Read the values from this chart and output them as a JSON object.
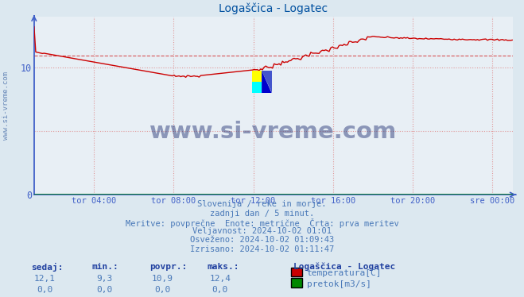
{
  "title": "Logaščica - Logatec",
  "background_color": "#dce8f0",
  "plot_background": "#e8eff5",
  "grid_color": "#e8a0a0",
  "title_color": "#0050a0",
  "temp_color": "#cc0000",
  "flow_color": "#008800",
  "avg_line_color": "#cc0000",
  "axis_color": "#4060c8",
  "tick_color": "#4060c8",
  "watermark_text": "www.si-vreme.com",
  "watermark_color": "#1a2a6e",
  "watermark_alpha": 0.45,
  "left_label_text": "www.si-vreme.com",
  "left_label_color": "#6888b8",
  "info_lines": [
    "Slovenija / reke in morje.",
    "zadnji dan / 5 minut.",
    "Meritve: povprečne  Enote: metrične  Črta: prva meritev",
    "Veljavnost: 2024-10-02 01:01",
    "Osveženo: 2024-10-02 01:09:43",
    "Izrisano: 2024-10-02 01:11:47"
  ],
  "info_color": "#4878b8",
  "table_headers": [
    "sedaj:",
    "min.:",
    "povpr.:",
    "maks.:"
  ],
  "table_header_color": "#2040a0",
  "table_value_color": "#4878b8",
  "legend_station": "Logaščica - Logatec",
  "legend_entries": [
    {
      "label": "temperatura[C]",
      "color": "#cc0000"
    },
    {
      "label": "pretok[m3/s]",
      "color": "#008800"
    }
  ],
  "table_data": [
    [
      "12,1",
      "9,3",
      "10,9",
      "12,4"
    ],
    [
      "0,0",
      "0,0",
      "0,0",
      "0,0"
    ]
  ],
  "x_ticks": [
    "tor 04:00",
    "tor 08:00",
    "tor 12:00",
    "tor 16:00",
    "tor 20:00",
    "sre 00:00"
  ],
  "y_ticks": [
    0,
    10
  ],
  "ylim": [
    0,
    14
  ],
  "avg_value": 10.9,
  "num_points": 288,
  "logo_colors": {
    "yellow": "#ffff00",
    "cyan": "#00ffff",
    "blue_dark": "#0000cc",
    "blue_med": "#4455cc"
  }
}
